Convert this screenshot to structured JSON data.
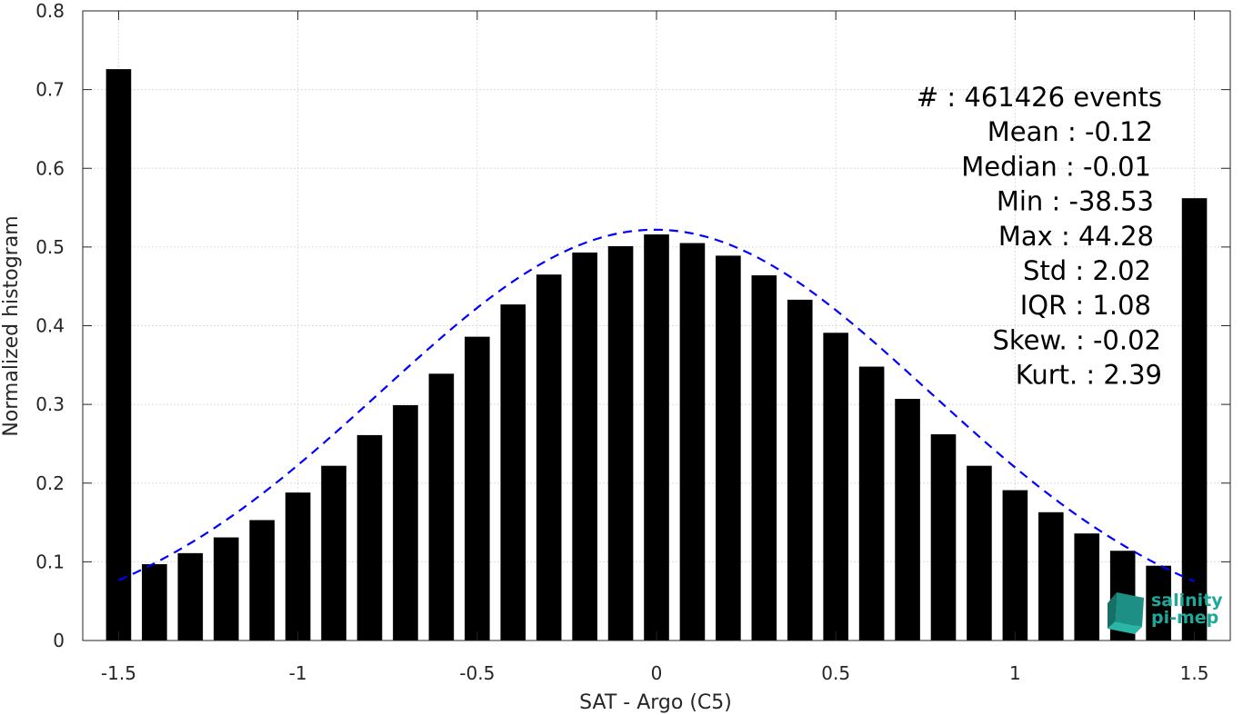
{
  "chart_data": {
    "type": "bar",
    "title": "",
    "xlabel": "SAT - Argo (C5)",
    "ylabel": "Normalized histogram",
    "xlim": [
      -1.6,
      1.6
    ],
    "ylim": [
      0,
      0.8
    ],
    "grid": true,
    "xticks": [
      -1.5,
      -1,
      -0.5,
      0,
      0.5,
      1,
      1.5
    ],
    "xtick_labels": [
      "-1.5",
      "-1",
      "-0.5",
      "0",
      "0.5",
      "1",
      "1.5"
    ],
    "yticks": [
      0,
      0.1,
      0.2,
      0.3,
      0.4,
      0.5,
      0.6,
      0.7,
      0.8
    ],
    "ytick_labels": [
      "0",
      "0.1",
      "0.2",
      "0.3",
      "0.4",
      "0.5",
      "0.6",
      "0.7",
      "0.8"
    ],
    "bar_color": "#000000",
    "bar_width": 0.07,
    "x": [
      -1.5,
      -1.4,
      -1.3,
      -1.2,
      -1.1,
      -1.0,
      -0.9,
      -0.8,
      -0.7,
      -0.6,
      -0.5,
      -0.4,
      -0.3,
      -0.2,
      -0.1,
      0.0,
      0.1,
      0.2,
      0.3,
      0.4,
      0.5,
      0.6,
      0.7,
      0.8,
      0.9,
      1.0,
      1.1,
      1.2,
      1.3,
      1.4,
      1.5
    ],
    "values": [
      0.726,
      0.097,
      0.111,
      0.131,
      0.153,
      0.188,
      0.222,
      0.261,
      0.299,
      0.339,
      0.386,
      0.427,
      0.465,
      0.493,
      0.501,
      0.516,
      0.505,
      0.489,
      0.464,
      0.433,
      0.391,
      0.348,
      0.307,
      0.262,
      0.222,
      0.191,
      0.163,
      0.136,
      0.114,
      0.095,
      0.562
    ],
    "fit_curve": {
      "style": "dashed",
      "color": "#0000ff",
      "mean": -0.004,
      "std": 0.7635,
      "peak": 0.522,
      "x_range": [
        -1.5,
        1.5
      ]
    },
    "stats": [
      "#  : 461426 events",
      "Mean : -0.12",
      "Median : -0.01",
      "Min : -38.53",
      "Max : 44.28",
      "Std : 2.02",
      "IQR : 1.08",
      "Skew. : -0.02",
      "Kurt. : 2.39"
    ]
  },
  "logo": {
    "line1": "salinity",
    "line2": "pi-mep",
    "icon": "salinity-cube-icon",
    "color": "#1fa89a"
  }
}
